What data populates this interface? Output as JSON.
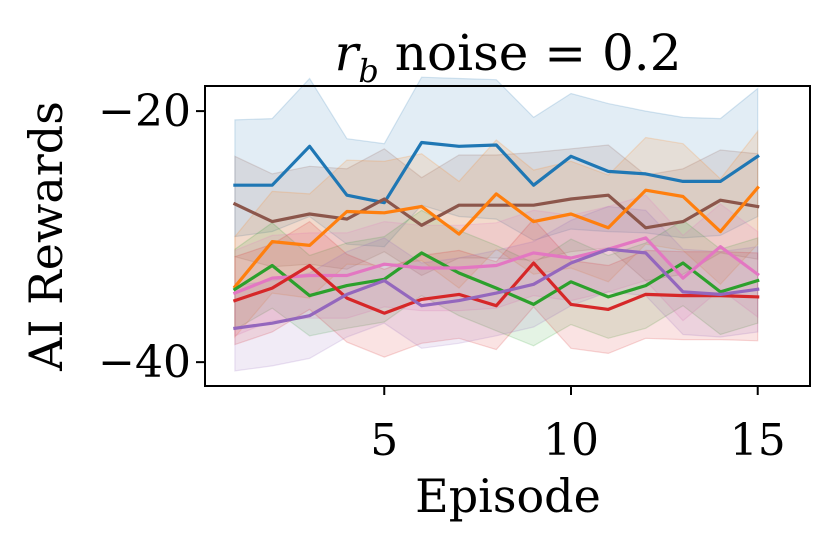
{
  "chart_data": {
    "type": "line",
    "title": {
      "main": "r",
      "subscript": "b",
      "rest": " noise = 0.2"
    },
    "xlabel": "Episode",
    "ylabel": "AI Rewards",
    "xlim": [
      0.2,
      16.4
    ],
    "ylim": [
      -41.9,
      -18.0
    ],
    "xticks": [
      5,
      10,
      15
    ],
    "xtick_labels": [
      "5",
      "10",
      "15"
    ],
    "yticks": [
      -20,
      -40
    ],
    "ytick_labels": [
      "−20",
      "−40"
    ],
    "x": [
      1,
      2,
      3,
      4,
      5,
      6,
      7,
      8,
      9,
      10,
      11,
      12,
      13,
      14,
      15
    ],
    "series": [
      {
        "name": "blue",
        "color": "#1f77b4",
        "values": [
          -25.9,
          -25.9,
          -22.8,
          -26.7,
          -27.3,
          -22.5,
          -22.8,
          -22.7,
          -25.9,
          -23.6,
          -24.8,
          -25.0,
          -25.6,
          -25.6,
          -23.6
        ],
        "band_low": [
          -30.0,
          -29.6,
          -28.4,
          -30.6,
          -30.8,
          -27.5,
          -28.4,
          -28.6,
          -30.3,
          -29.4,
          -29.6,
          -29.7,
          -30.1,
          -29.9,
          -28.4
        ],
        "band_high": [
          -20.7,
          -20.6,
          -17.4,
          -22.2,
          -22.6,
          -17.3,
          -17.4,
          -17.5,
          -20.5,
          -18.6,
          -19.4,
          -20.0,
          -20.5,
          -20.6,
          -18.2
        ]
      },
      {
        "name": "brown",
        "color": "#8c564b",
        "values": [
          -27.4,
          -28.8,
          -28.2,
          -28.6,
          -27.0,
          -29.1,
          -27.5,
          -27.5,
          -27.5,
          -27.0,
          -26.7,
          -29.3,
          -28.8,
          -27.1,
          -27.6
        ],
        "band_low": [
          -31.6,
          -32.4,
          -32.2,
          -32.6,
          -31.2,
          -33.1,
          -31.7,
          -31.7,
          -31.9,
          -31.2,
          -30.9,
          -33.5,
          -33.0,
          -31.3,
          -31.8
        ],
        "band_high": [
          -23.6,
          -25.0,
          -24.4,
          -24.6,
          -23.0,
          -25.3,
          -23.5,
          -23.5,
          -23.3,
          -23.0,
          -22.7,
          -25.1,
          -24.6,
          -23.1,
          -23.4
        ]
      },
      {
        "name": "orange",
        "color": "#ff7f0e",
        "values": [
          -34.0,
          -30.4,
          -30.7,
          -28.0,
          -28.1,
          -27.6,
          -29.8,
          -26.6,
          -28.8,
          -28.2,
          -29.3,
          -26.3,
          -26.8,
          -29.6,
          -26.1
        ],
        "band_low": [
          -38.0,
          -34.5,
          -34.9,
          -32.2,
          -32.3,
          -31.9,
          -34.1,
          -31.0,
          -33.0,
          -32.5,
          -33.6,
          -30.6,
          -31.1,
          -33.8,
          -30.6
        ],
        "band_high": [
          -30.0,
          -26.4,
          -26.6,
          -23.9,
          -24.0,
          -23.4,
          -25.6,
          -22.3,
          -24.7,
          -24.0,
          -25.1,
          -22.1,
          -22.6,
          -25.4,
          -21.6
        ]
      },
      {
        "name": "green",
        "color": "#2ca02c",
        "values": [
          -34.2,
          -32.3,
          -34.7,
          -33.9,
          -33.4,
          -31.3,
          -32.9,
          -34.1,
          -35.4,
          -33.6,
          -34.8,
          -33.9,
          -32.1,
          -34.4,
          -33.5
        ],
        "band_low": [
          -37.4,
          -35.7,
          -37.9,
          -37.3,
          -36.8,
          -34.7,
          -36.3,
          -37.5,
          -38.7,
          -37.0,
          -38.1,
          -37.3,
          -35.5,
          -37.8,
          -36.9
        ],
        "band_high": [
          -31.0,
          -28.9,
          -31.5,
          -30.5,
          -30.0,
          -27.9,
          -29.5,
          -30.7,
          -32.1,
          -30.2,
          -31.5,
          -30.5,
          -28.7,
          -31.0,
          -30.1
        ]
      },
      {
        "name": "pink",
        "color": "#e377c2",
        "values": [
          -34.5,
          -33.3,
          -33.1,
          -33.1,
          -32.2,
          -32.5,
          -32.5,
          -32.3,
          -31.3,
          -31.7,
          -31.0,
          -30.1,
          -33.3,
          -30.8,
          -33.0
        ],
        "band_low": [
          -37.9,
          -36.7,
          -36.5,
          -36.5,
          -35.6,
          -35.9,
          -35.9,
          -35.7,
          -34.7,
          -35.1,
          -34.4,
          -33.5,
          -36.7,
          -34.2,
          -36.4
        ],
        "band_high": [
          -31.1,
          -29.9,
          -29.7,
          -29.7,
          -28.8,
          -29.1,
          -29.1,
          -28.9,
          -27.9,
          -28.3,
          -27.6,
          -26.7,
          -29.9,
          -27.4,
          -29.6
        ]
      },
      {
        "name": "red",
        "color": "#d62728",
        "values": [
          -35.1,
          -34.1,
          -32.3,
          -34.9,
          -36.1,
          -35.0,
          -34.6,
          -35.5,
          -32.1,
          -35.4,
          -35.8,
          -34.6,
          -34.7,
          -34.7,
          -34.8
        ],
        "band_low": [
          -38.6,
          -37.6,
          -35.8,
          -38.4,
          -39.6,
          -38.5,
          -38.1,
          -39.0,
          -35.6,
          -38.9,
          -39.3,
          -38.1,
          -38.2,
          -38.2,
          -38.3
        ],
        "band_high": [
          -31.6,
          -30.6,
          -28.8,
          -31.4,
          -32.6,
          -31.5,
          -31.1,
          -32.0,
          -28.6,
          -31.9,
          -32.3,
          -31.1,
          -31.2,
          -31.2,
          -31.3
        ]
      },
      {
        "name": "purple",
        "color": "#9467bd",
        "values": [
          -37.3,
          -36.9,
          -36.3,
          -34.6,
          -33.5,
          -35.5,
          -35.1,
          -34.5,
          -33.8,
          -32.1,
          -31.0,
          -31.3,
          -34.4,
          -34.6,
          -34.2
        ],
        "band_low": [
          -40.7,
          -40.3,
          -39.7,
          -38.0,
          -36.9,
          -38.9,
          -38.5,
          -37.9,
          -37.2,
          -35.5,
          -34.4,
          -34.7,
          -37.8,
          -38.0,
          -37.6
        ],
        "band_high": [
          -33.9,
          -33.5,
          -32.9,
          -31.2,
          -30.1,
          -32.1,
          -31.7,
          -31.1,
          -30.4,
          -28.7,
          -27.6,
          -27.9,
          -31.0,
          -31.2,
          -30.8
        ]
      }
    ]
  }
}
